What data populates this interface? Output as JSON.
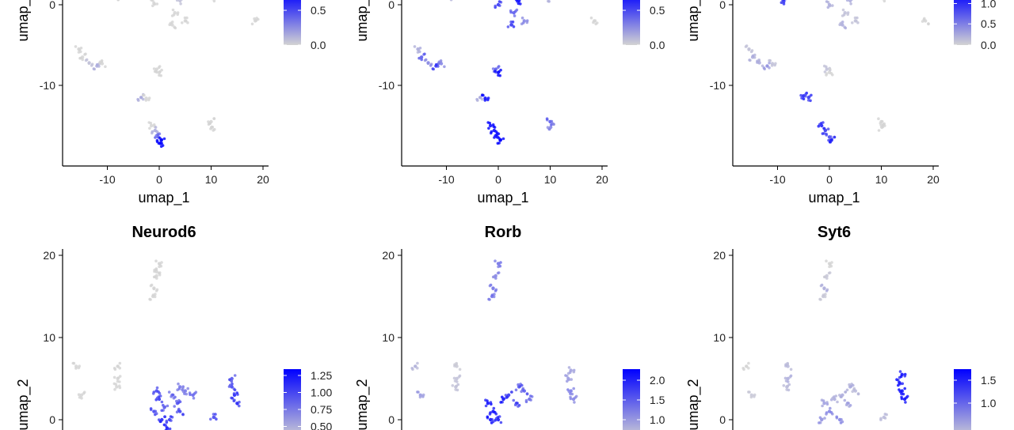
{
  "chart_data": [
    {
      "type": "scatter",
      "title": "",
      "xlabel": "umap_1",
      "ylabel": "umap_2",
      "xticks": [
        "-10",
        "0",
        "10",
        "20"
      ],
      "yticks": [
        "0",
        "-10"
      ],
      "xlim": [
        -19,
        21
      ],
      "legend_ticks": [
        "0.5",
        "0.0"
      ],
      "legend_values": [
        0.5,
        0.0
      ],
      "color_low": "#d3d3d3",
      "color_high": "#0000ff",
      "points": [
        [
          -15.5,
          -5.5,
          0
        ],
        [
          -14.8,
          -6.5,
          0
        ],
        [
          -13.5,
          -7.2,
          0.05
        ],
        [
          -12,
          -7.6,
          0.1
        ],
        [
          -11,
          -7.3,
          0
        ],
        [
          -3.5,
          -11.5,
          0.1
        ],
        [
          -2.5,
          -11.6,
          0
        ],
        [
          -0.5,
          -8,
          0
        ],
        [
          0,
          -8.4,
          0
        ],
        [
          -1.5,
          -15,
          0
        ],
        [
          -0.8,
          -15.6,
          0.1
        ],
        [
          -0.2,
          -16.4,
          0.3
        ],
        [
          0.4,
          -16.8,
          0.8
        ],
        [
          0.2,
          -17.2,
          0.9
        ],
        [
          10,
          -14.5,
          0
        ],
        [
          10.1,
          -15.2,
          0
        ],
        [
          18.5,
          -2,
          0
        ],
        [
          -8.5,
          1,
          0
        ],
        [
          -1.5,
          1.5,
          0
        ],
        [
          -1,
          0.2,
          0
        ],
        [
          2,
          2,
          0
        ],
        [
          4,
          0.5,
          0.05
        ],
        [
          3,
          -1,
          0
        ],
        [
          5,
          -2,
          0
        ],
        [
          2.5,
          -2.5,
          0
        ],
        [
          4.5,
          1.5,
          0
        ],
        [
          10.2,
          0.8,
          0
        ]
      ]
    },
    {
      "type": "scatter",
      "title": "",
      "xlabel": "umap_1",
      "ylabel": "umap_2",
      "xticks": [
        "-10",
        "0",
        "10",
        "20"
      ],
      "yticks": [
        "0",
        "-10"
      ],
      "xlim": [
        -19,
        21
      ],
      "legend_ticks": [
        "0.5",
        "0.0"
      ],
      "legend_values": [
        0.5,
        0.0
      ],
      "color_low": "#d3d3d3",
      "color_high": "#0000ff",
      "points": [
        [
          -15.5,
          -5.5,
          0.1
        ],
        [
          -14.8,
          -6.5,
          0.3
        ],
        [
          -13.5,
          -7.2,
          0.2
        ],
        [
          -12,
          -7.6,
          0.4
        ],
        [
          -11,
          -7.3,
          0.2
        ],
        [
          -3.5,
          -11.5,
          0.1
        ],
        [
          -2.5,
          -11.6,
          0.6
        ],
        [
          -0.5,
          -8,
          0.3
        ],
        [
          0,
          -8.4,
          0.6
        ],
        [
          -1.5,
          -15,
          0.8
        ],
        [
          -0.8,
          -15.6,
          0.9
        ],
        [
          -0.2,
          -16.4,
          0.7
        ],
        [
          0.4,
          -16.8,
          0.8
        ],
        [
          10,
          -14.5,
          0.3
        ],
        [
          10.1,
          -15.2,
          0.2
        ],
        [
          18.5,
          -2,
          0
        ],
        [
          -8.5,
          1,
          0.1
        ],
        [
          -0.5,
          1.5,
          0.6
        ],
        [
          0,
          0,
          0.4
        ],
        [
          2,
          2,
          0.5
        ],
        [
          4,
          0.5,
          0.6
        ],
        [
          3,
          -1,
          0.3
        ],
        [
          5,
          -2,
          0.2
        ],
        [
          2.5,
          -2.5,
          0.4
        ],
        [
          4.5,
          1.5,
          0.5
        ],
        [
          10.2,
          0.8,
          0.1
        ]
      ]
    },
    {
      "type": "scatter",
      "title": "",
      "xlabel": "umap_1",
      "ylabel": "umap_2",
      "xticks": [
        "-10",
        "0",
        "10",
        "20"
      ],
      "yticks": [
        "0",
        "-10"
      ],
      "xlim": [
        -19,
        21
      ],
      "legend_ticks": [
        "1.0",
        "0.5",
        "0.0"
      ],
      "legend_values": [
        1.0,
        0.5,
        0.0
      ],
      "color_low": "#d3d3d3",
      "color_high": "#0000ff",
      "points": [
        [
          -9,
          1,
          0.9
        ],
        [
          -8.8,
          0.4,
          0.8
        ],
        [
          -15.5,
          -5.5,
          0.1
        ],
        [
          -14.8,
          -6.5,
          0.2
        ],
        [
          -13.5,
          -7.2,
          0.2
        ],
        [
          -12,
          -7.6,
          0.3
        ],
        [
          -11,
          -7.3,
          0.1
        ],
        [
          -5,
          -11.3,
          0.9
        ],
        [
          -4,
          -11.5,
          0.8
        ],
        [
          -0.5,
          -8,
          0.1
        ],
        [
          0,
          -8.4,
          0
        ],
        [
          -1.5,
          -15,
          0.9
        ],
        [
          -0.8,
          -15.6,
          0.8
        ],
        [
          0,
          -16.4,
          0.7
        ],
        [
          0.4,
          -16.8,
          0.9
        ],
        [
          10,
          -14.5,
          0
        ],
        [
          10.1,
          -15.2,
          0
        ],
        [
          18.5,
          -2,
          0
        ],
        [
          -0.5,
          1.5,
          0.1
        ],
        [
          0,
          0,
          0.2
        ],
        [
          2,
          2,
          0.1
        ],
        [
          4,
          0.5,
          0.2
        ],
        [
          3,
          -1,
          0.1
        ],
        [
          5,
          -2,
          0.1
        ],
        [
          2.5,
          -2.5,
          0.2
        ],
        [
          4.5,
          1.5,
          0.1
        ],
        [
          10.2,
          0.8,
          0
        ]
      ]
    },
    {
      "type": "scatter",
      "title": "Neurod6",
      "xlabel": "",
      "ylabel": "umap_2",
      "xticks": [],
      "yticks": [
        "20",
        "10",
        "0"
      ],
      "ylim_top": 21,
      "legend_ticks": [
        "1.25",
        "1.00",
        "0.75",
        "0.50"
      ],
      "legend_values": [
        1.25,
        1.0,
        0.75,
        0.5
      ],
      "color_low": "#d3d3d3",
      "color_high": "#0000ff",
      "points": [
        [
          0,
          19,
          0
        ],
        [
          -0.5,
          17.5,
          0
        ],
        [
          -1,
          16,
          0
        ],
        [
          -1.2,
          15,
          0
        ],
        [
          -0.5,
          18,
          0
        ],
        [
          -8,
          6.5,
          0
        ],
        [
          -16,
          6.5,
          0
        ],
        [
          -15,
          3,
          0
        ],
        [
          -8,
          5,
          0
        ],
        [
          -8.2,
          4,
          0
        ],
        [
          -0.5,
          3.5,
          0.9
        ],
        [
          0,
          2.5,
          1.0
        ],
        [
          1,
          1.5,
          0.8
        ],
        [
          -1,
          1,
          0.9
        ],
        [
          0.5,
          0,
          1.1
        ],
        [
          2.5,
          3,
          0.7
        ],
        [
          3.5,
          2,
          0.8
        ],
        [
          4,
          1,
          0.9
        ],
        [
          2,
          0,
          1.0
        ],
        [
          1.5,
          -1,
          1.2
        ],
        [
          5,
          3.5,
          0.6
        ],
        [
          6.5,
          3,
          0.7
        ],
        [
          4,
          4,
          0.6
        ],
        [
          10.5,
          0.3,
          0.9
        ],
        [
          14,
          4,
          0.9
        ],
        [
          14.5,
          3,
          1.1
        ],
        [
          15,
          2,
          1.0
        ],
        [
          14,
          5,
          0.8
        ]
      ]
    },
    {
      "type": "scatter",
      "title": "Rorb",
      "xlabel": "",
      "ylabel": "umap_2",
      "xticks": [],
      "yticks": [
        "20",
        "10",
        "0"
      ],
      "ylim_top": 21,
      "legend_ticks": [
        "2.0",
        "1.5",
        "1.0"
      ],
      "legend_values": [
        2.0,
        1.5,
        1.0
      ],
      "color_low": "#d3d3d3",
      "color_high": "#0000ff",
      "points": [
        [
          0,
          19,
          1.0
        ],
        [
          -0.5,
          17.5,
          0.8
        ],
        [
          -1,
          16,
          1.0
        ],
        [
          -1.2,
          15,
          1.0
        ],
        [
          -8,
          6.5,
          0.1
        ],
        [
          -16,
          6.5,
          0.3
        ],
        [
          -15,
          3,
          0.6
        ],
        [
          -8,
          5,
          0.2
        ],
        [
          -8.2,
          4,
          0.2
        ],
        [
          -2,
          2,
          2.0
        ],
        [
          -1,
          1,
          2.1
        ],
        [
          0,
          0,
          1.9
        ],
        [
          1,
          2.5,
          2.0
        ],
        [
          -1.5,
          0,
          2.0
        ],
        [
          2,
          3,
          1.6
        ],
        [
          3.5,
          2,
          1.5
        ],
        [
          4,
          4,
          1.3
        ],
        [
          5,
          3.5,
          1.2
        ],
        [
          6,
          2.5,
          1.1
        ],
        [
          13.5,
          5,
          0.6
        ],
        [
          14,
          3.5,
          0.9
        ],
        [
          14.5,
          2.5,
          0.8
        ],
        [
          14,
          6,
          0.5
        ]
      ]
    },
    {
      "type": "scatter",
      "title": "Syt6",
      "xlabel": "",
      "ylabel": "umap_2",
      "xticks": [],
      "yticks": [
        "20",
        "10",
        "0"
      ],
      "ylim_top": 21,
      "legend_ticks": [
        "1.5",
        "1.0"
      ],
      "legend_values": [
        1.5,
        1.0
      ],
      "color_low": "#d3d3d3",
      "color_high": "#0000ff",
      "points": [
        [
          0,
          19,
          0
        ],
        [
          -0.5,
          17.5,
          0.1
        ],
        [
          -1,
          16,
          0.3
        ],
        [
          -1.2,
          15,
          0.1
        ],
        [
          -8,
          6.5,
          0.2
        ],
        [
          -16,
          6.5,
          0
        ],
        [
          -15,
          3,
          0.1
        ],
        [
          -8,
          5,
          0.3
        ],
        [
          -8.2,
          4,
          0.2
        ],
        [
          -1,
          2,
          0.4
        ],
        [
          0,
          1,
          0.6
        ],
        [
          1,
          2.5,
          0.3
        ],
        [
          -1.5,
          0,
          0.5
        ],
        [
          2,
          0,
          0.6
        ],
        [
          2.5,
          3,
          0.3
        ],
        [
          3.5,
          2,
          0.4
        ],
        [
          4,
          4,
          0.3
        ],
        [
          5,
          3.5,
          0.2
        ],
        [
          10.5,
          0.3,
          0.2
        ],
        [
          13.5,
          4.5,
          1.6
        ],
        [
          14,
          3.5,
          1.8
        ],
        [
          14.5,
          2.5,
          1.7
        ],
        [
          14,
          5.5,
          1.5
        ]
      ]
    }
  ]
}
